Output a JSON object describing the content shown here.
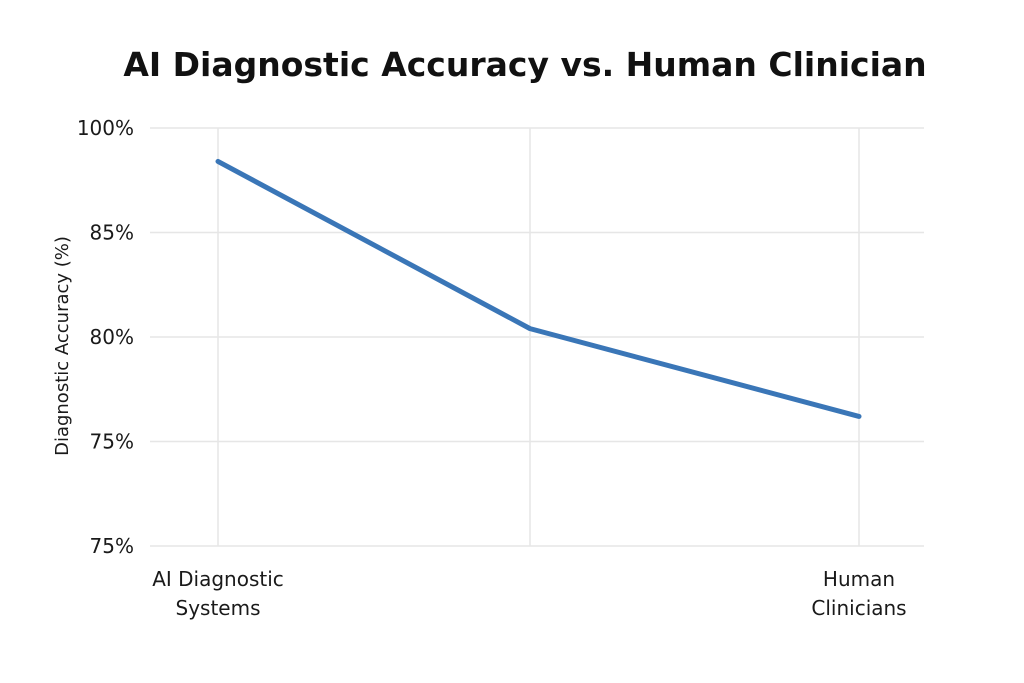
{
  "chart_data": {
    "type": "line",
    "title": "AI Diagnostic Accuracy vs. Human Clinician",
    "ylabel": "Diagnostic Accuracy (%)",
    "xlabel": "",
    "y_tick_labels": [
      "100%",
      "85%",
      "80%",
      "75%",
      "75%"
    ],
    "categories": [
      [
        "AI Diagnostic",
        "Systems"
      ],
      [
        "",
        ""
      ],
      [
        "Human",
        "Clinicians"
      ]
    ],
    "series": [
      {
        "values": [
          0.92,
          0.52,
          0.31
        ]
      }
    ],
    "y_scale_note": "values given as fraction of plotted axis height (bottom=0, top=1) because tick labels are non-linear",
    "grid": true,
    "legend": "none",
    "line_color": "#3a76b7",
    "grid_color": "#e6e6e6"
  }
}
